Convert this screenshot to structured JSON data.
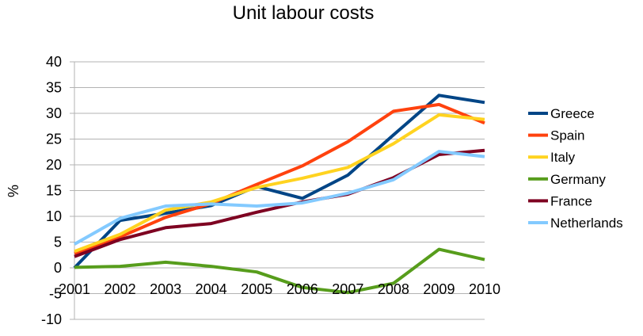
{
  "chart_data": {
    "type": "line",
    "title": "Unit labour costs",
    "xlabel": "",
    "ylabel": "%",
    "x": [
      "2001",
      "2002",
      "2003",
      "2004",
      "2005",
      "2006",
      "2007",
      "2008",
      "2009",
      "2010"
    ],
    "ylim": [
      -10,
      40
    ],
    "yticks": [
      "-10",
      "-5",
      "0",
      "5",
      "10",
      "15",
      "20",
      "25",
      "30",
      "35",
      "40"
    ],
    "grid": "horizontal",
    "legend": "right",
    "series": [
      {
        "name": "Greece",
        "color": "#004586",
        "values": [
          0,
          9.2,
          10.6,
          12.1,
          15.8,
          13.5,
          18,
          25.8,
          33.5,
          32.1
        ]
      },
      {
        "name": "Spain",
        "color": "#ff420e",
        "values": [
          2.8,
          6.0,
          9.8,
          12.5,
          16.2,
          19.8,
          24.5,
          30.4,
          31.7,
          28.1
        ]
      },
      {
        "name": "Italy",
        "color": "#ffd320",
        "values": [
          3.2,
          6.5,
          11.2,
          12.8,
          15.6,
          17.4,
          19.5,
          24.1,
          29.7,
          28.8
        ]
      },
      {
        "name": "Germany",
        "color": "#579d1c",
        "values": [
          0.1,
          0.3,
          1.1,
          0.3,
          -0.8,
          -3.8,
          -4.8,
          -3.0,
          3.6,
          1.6
        ]
      },
      {
        "name": "France",
        "color": "#7e0021",
        "values": [
          2.2,
          5.5,
          7.8,
          8.6,
          10.8,
          12.8,
          14.3,
          17.5,
          22,
          22.8
        ]
      },
      {
        "name": "Netherlands",
        "color": "#83caff",
        "values": [
          4.6,
          9.6,
          12.0,
          12.4,
          12.0,
          12.6,
          14.5,
          17.1,
          22.6,
          21.6
        ]
      }
    ]
  }
}
